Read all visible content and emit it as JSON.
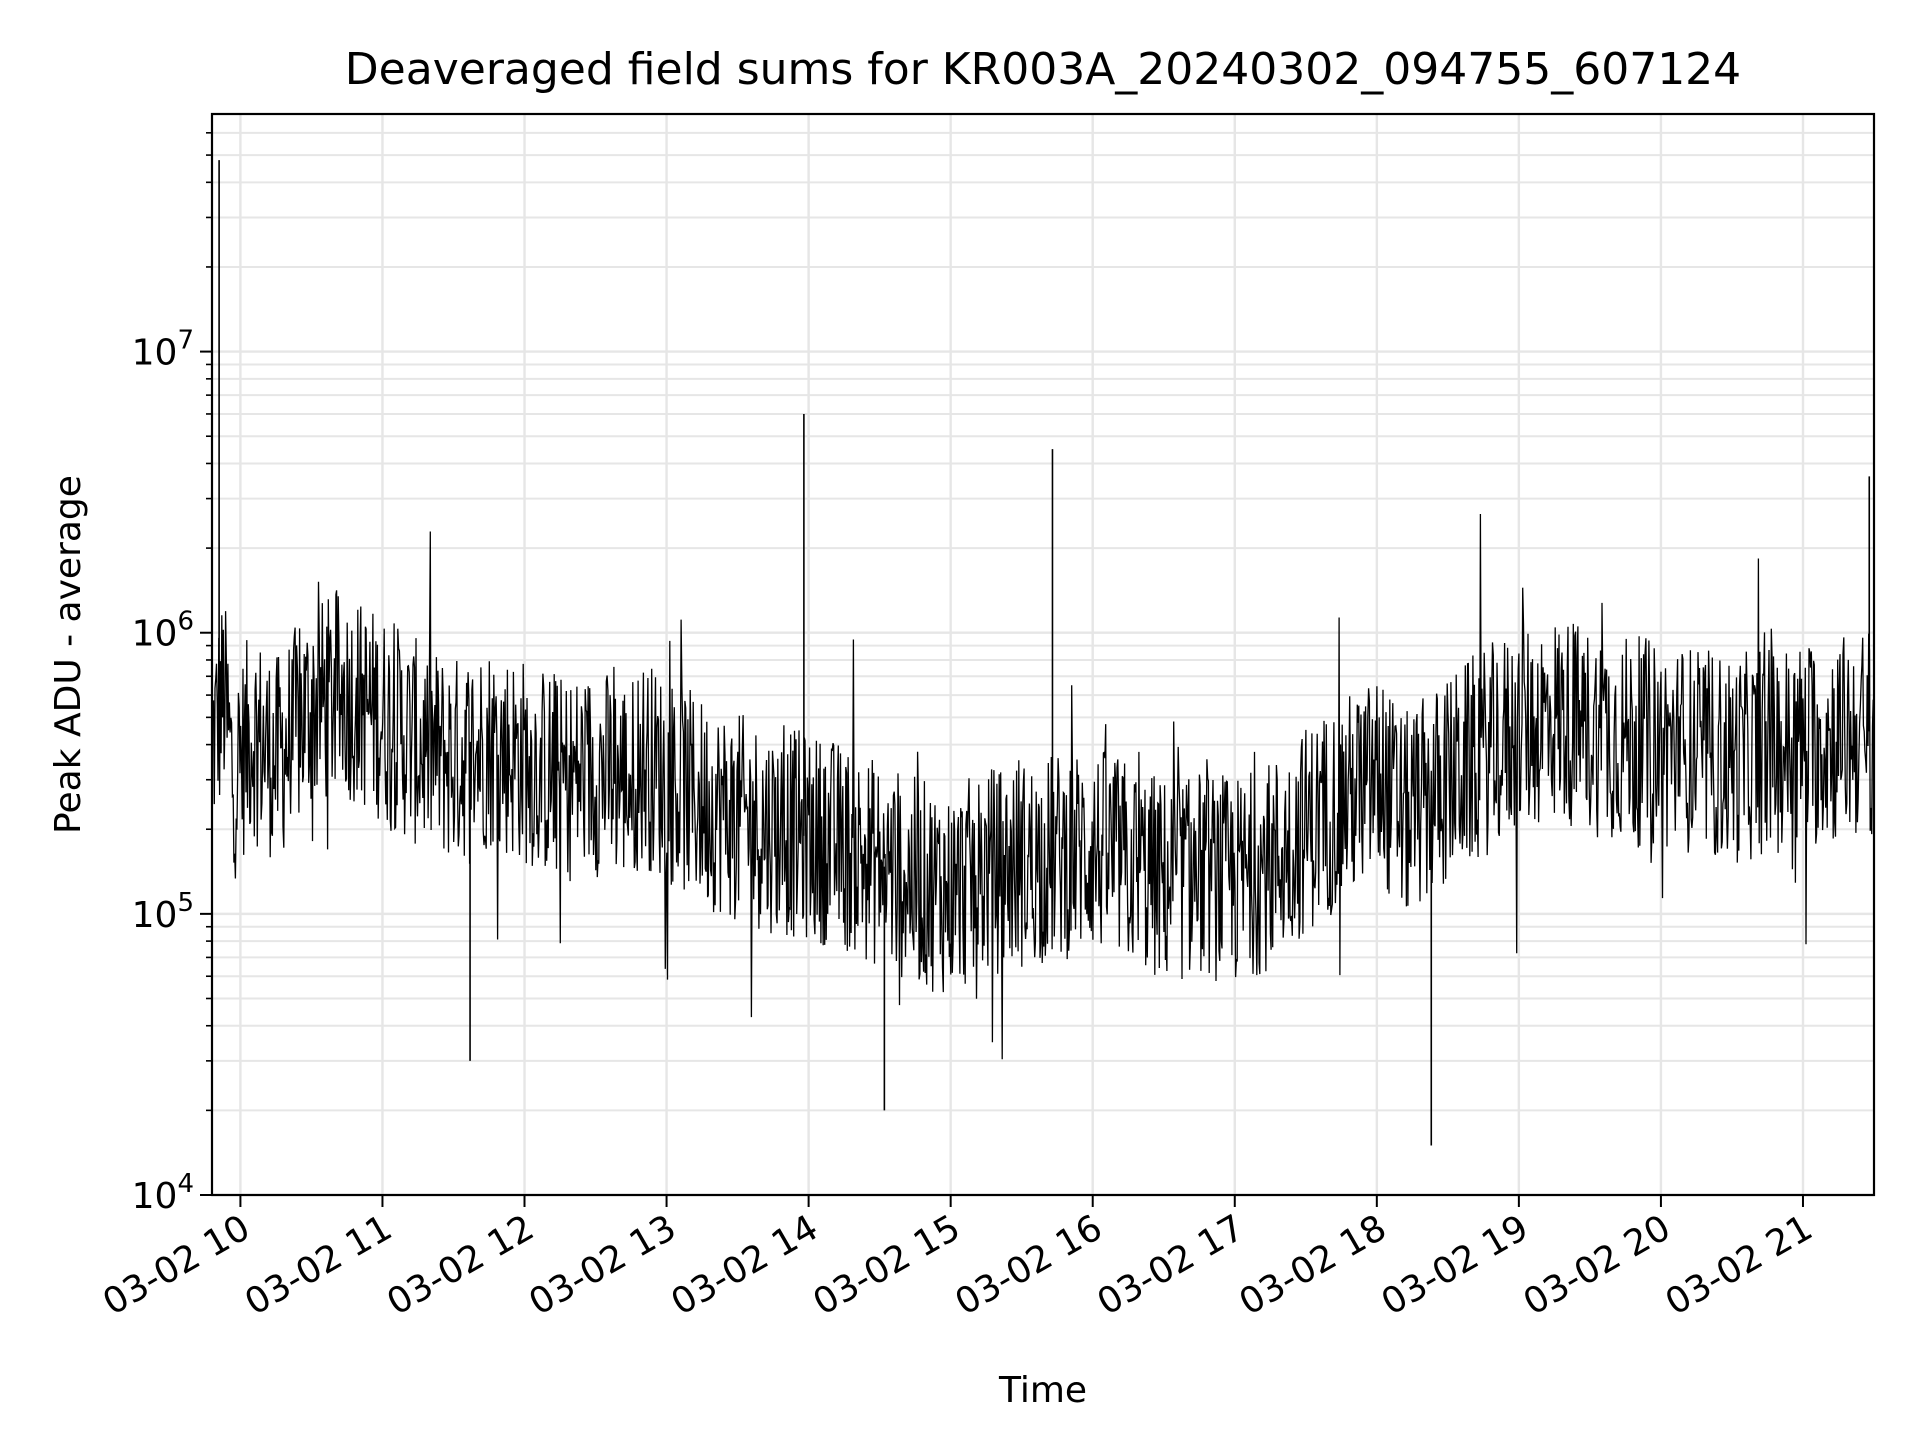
{
  "chart_data": {
    "type": "line",
    "title": "Deaveraged field sums for KR003A_20240302_094755_607124",
    "xlabel": "Time",
    "ylabel": "Peak ADU - average",
    "yscale": "log",
    "ylim": [
      10000,
      70000000
    ],
    "y_ticks": [
      {
        "value": 10000,
        "base": "10",
        "exp": "4"
      },
      {
        "value": 100000,
        "base": "10",
        "exp": "5"
      },
      {
        "value": 1000000,
        "base": "10",
        "exp": "6"
      },
      {
        "value": 10000000,
        "base": "10",
        "exp": "7"
      }
    ],
    "xlim": [
      "2024-03-02 09:48",
      "2024-03-02 21:30"
    ],
    "x_ticks": [
      {
        "value": "2024-03-02 10:00",
        "label": "03-02 10"
      },
      {
        "value": "2024-03-02 11:00",
        "label": "03-02 11"
      },
      {
        "value": "2024-03-02 12:00",
        "label": "03-02 12"
      },
      {
        "value": "2024-03-02 13:00",
        "label": "03-02 13"
      },
      {
        "value": "2024-03-02 14:00",
        "label": "03-02 14"
      },
      {
        "value": "2024-03-02 15:00",
        "label": "03-02 15"
      },
      {
        "value": "2024-03-02 16:00",
        "label": "03-02 16"
      },
      {
        "value": "2024-03-02 17:00",
        "label": "03-02 17"
      },
      {
        "value": "2024-03-02 18:00",
        "label": "03-02 18"
      },
      {
        "value": "2024-03-02 19:00",
        "label": "03-02 19"
      },
      {
        "value": "2024-03-02 20:00",
        "label": "03-02 20"
      },
      {
        "value": "2024-03-02 21:00",
        "label": "03-02 21"
      }
    ],
    "grid": true,
    "line_color": "#000000",
    "grid_color": "#e6e6e6",
    "series": [
      {
        "x": [
          "2024-03-02 09:48",
          "2024-03-02 09:51",
          "2024-03-02 09:53",
          "2024-03-02 09:57",
          "2024-03-02 10:05",
          "2024-03-02 10:15",
          "2024-03-02 10:30",
          "2024-03-02 10:45",
          "2024-03-02 11:00",
          "2024-03-02 11:15",
          "2024-03-02 11:30",
          "2024-03-02 11:37",
          "2024-03-02 11:45",
          "2024-03-02 12:00",
          "2024-03-02 12:15",
          "2024-03-02 12:30",
          "2024-03-02 12:45",
          "2024-03-02 12:50",
          "2024-03-02 13:00",
          "2024-03-02 13:15",
          "2024-03-02 13:30",
          "2024-03-02 13:45",
          "2024-03-02 13:58",
          "2024-03-02 14:10",
          "2024-03-02 14:30",
          "2024-03-02 14:32",
          "2024-03-02 14:45",
          "2024-03-02 15:00",
          "2024-03-02 15:15",
          "2024-03-02 15:30",
          "2024-03-02 15:43",
          "2024-03-02 16:00",
          "2024-03-02 16:15",
          "2024-03-02 16:30",
          "2024-03-02 16:45",
          "2024-03-02 17:00",
          "2024-03-02 17:15",
          "2024-03-02 17:30",
          "2024-03-02 17:45",
          "2024-03-02 18:00",
          "2024-03-02 18:12",
          "2024-03-02 18:23",
          "2024-03-02 18:40",
          "2024-03-02 19:00",
          "2024-03-02 19:15",
          "2024-03-02 19:30",
          "2024-03-02 19:45",
          "2024-03-02 20:00",
          "2024-03-02 20:15",
          "2024-03-02 20:30",
          "2024-03-02 20:45",
          "2024-03-02 21:00",
          "2024-03-02 21:15",
          "2024-03-02 21:28",
          "2024-03-02 21:30"
        ],
        "y": [
          400000,
          48000000,
          600000,
          300000,
          450000,
          350000,
          550000,
          600000,
          500000,
          400000,
          350000,
          30000,
          400000,
          350000,
          300000,
          320000,
          300000,
          350000,
          300000,
          250000,
          220000,
          200000,
          6000000,
          180000,
          150000,
          20000,
          130000,
          120000,
          140000,
          150000,
          4500000,
          170000,
          150000,
          130000,
          140000,
          130000,
          150000,
          200000,
          250000,
          300000,
          220000,
          15000,
          350000,
          450000,
          500000,
          450000,
          420000,
          400000,
          380000,
          350000,
          380000,
          400000,
          420000,
          3600000,
          450000
        ]
      }
    ]
  }
}
